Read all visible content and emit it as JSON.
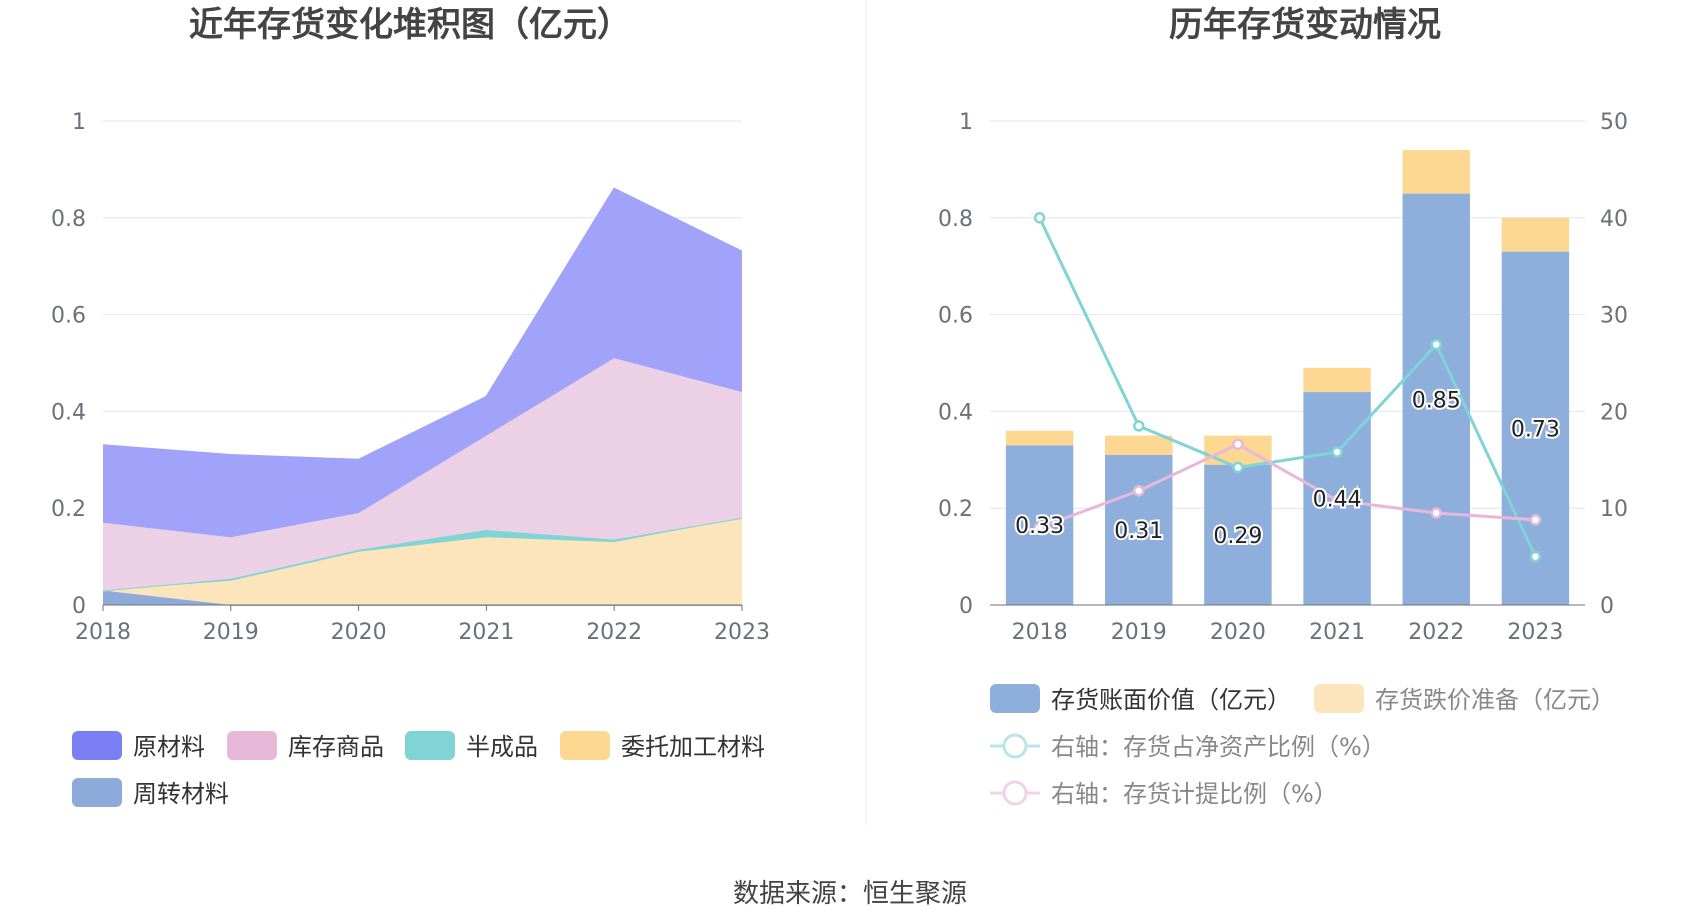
{
  "footer": {
    "source": "数据来源：恒生聚源"
  },
  "chart_data": [
    {
      "type": "area",
      "stacked": true,
      "title": "近年存货变化堆积图（亿元）",
      "categories": [
        "2018",
        "2019",
        "2020",
        "2021",
        "2022",
        "2023"
      ],
      "ylim": [
        0,
        1
      ],
      "yticks": [
        "0",
        "0.2",
        "0.4",
        "0.6",
        "0.8",
        "1"
      ],
      "grid": true,
      "legend_position": "bottom",
      "series": [
        {
          "name": "周转材料",
          "color": "#8eaadb",
          "values": [
            0.03,
            0.0,
            0.0,
            0.0,
            0.0,
            0.0
          ]
        },
        {
          "name": "委托加工材料",
          "color": "#fde5bb",
          "values": [
            0.0,
            0.05,
            0.11,
            0.14,
            0.13,
            0.18
          ]
        },
        {
          "name": "半成品",
          "color": "#80d4d6",
          "values": [
            0.0,
            0.004,
            0.004,
            0.015,
            0.005,
            0.0
          ]
        },
        {
          "name": "库存商品",
          "color": "#ecd0e6",
          "values": [
            0.14,
            0.086,
            0.076,
            0.195,
            0.375,
            0.26
          ]
        },
        {
          "name": "原材料",
          "color": "#a0a3f9",
          "values": [
            0.16,
            0.17,
            0.11,
            0.08,
            0.35,
            0.29
          ]
        }
      ],
      "legend": [
        {
          "name": "原材料",
          "color": "#7b7ff5"
        },
        {
          "name": "库存商品",
          "color": "#e7b8da"
        },
        {
          "name": "半成品",
          "color": "#80d4d6"
        },
        {
          "name": "委托加工材料",
          "color": "#fdd892"
        },
        {
          "name": "周转材料",
          "color": "#8eaadb"
        }
      ]
    },
    {
      "type": "bar",
      "stacked": true,
      "title": "历年存货变动情况",
      "categories": [
        "2018",
        "2019",
        "2020",
        "2021",
        "2022",
        "2023"
      ],
      "ylim": [
        0,
        1
      ],
      "yticks": [
        "0",
        "0.2",
        "0.4",
        "0.6",
        "0.8",
        "1"
      ],
      "y2lim": [
        0,
        50
      ],
      "y2ticks": [
        "0",
        "10",
        "20",
        "30",
        "40",
        "50"
      ],
      "grid": true,
      "legend_position": "bottom",
      "series": [
        {
          "name": "存货账面价值（亿元）",
          "color": "#8eaedb",
          "kind": "bar",
          "axis": "left",
          "values": [
            0.33,
            0.31,
            0.29,
            0.44,
            0.85,
            0.73
          ],
          "labels": [
            "0.33",
            "0.31",
            "0.29",
            "0.44",
            "0.85",
            "0.73"
          ]
        },
        {
          "name": "存货跌价准备（亿元）",
          "color": "#fdd892",
          "kind": "bar",
          "axis": "left",
          "values": [
            0.03,
            0.04,
            0.06,
            0.05,
            0.09,
            0.07
          ]
        },
        {
          "name": "右轴：存货占净资产比例（%）",
          "color": "#80d4d6",
          "kind": "line",
          "axis": "right",
          "values": [
            40.0,
            18.5,
            14.2,
            15.8,
            26.9,
            5.0
          ]
        },
        {
          "name": "右轴：存货计提比例（%）",
          "color": "#e7b8da",
          "kind": "line",
          "axis": "right",
          "values": [
            8.0,
            11.8,
            16.6,
            10.8,
            9.5,
            8.8
          ]
        }
      ]
    }
  ]
}
